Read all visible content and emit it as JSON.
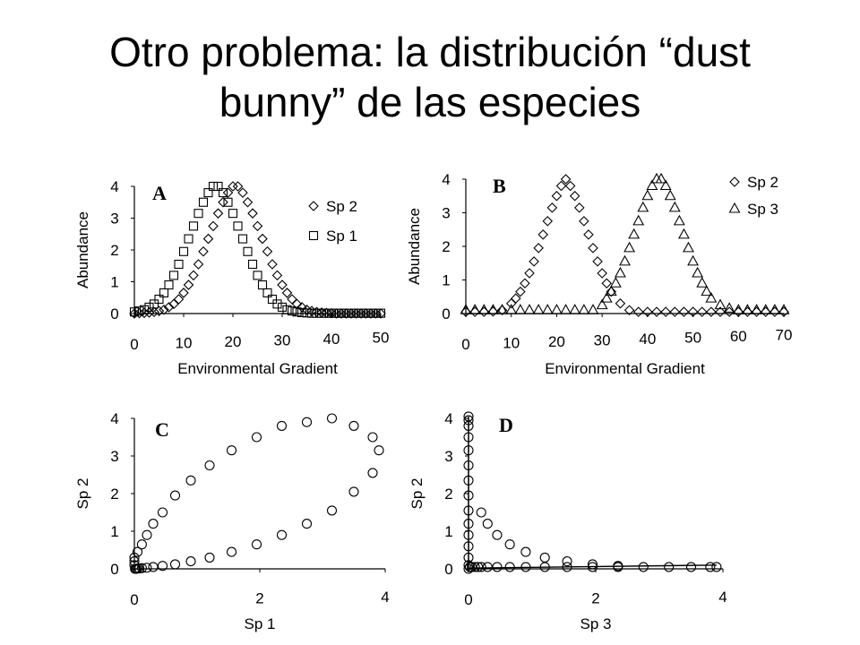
{
  "slide": {
    "title_line1": "Otro problema: la distribución “dust",
    "title_line2": "bunny” de las especies"
  },
  "chart_data": [
    {
      "panel": "A",
      "type": "scatter",
      "xlabel": "Environmental Gradient",
      "ylabel": "Abundance",
      "xlim": [
        0,
        50
      ],
      "ylim": [
        0,
        4
      ],
      "xticks": [
        "0",
        "10",
        "20",
        "30",
        "40",
        "50"
      ],
      "yticks": [
        "0",
        "1",
        "2",
        "3",
        "4"
      ],
      "legend_position": "top-right",
      "series": [
        {
          "name": "Sp 2",
          "marker": "diamond",
          "x": [
            0,
            1,
            2,
            3,
            4,
            5,
            6,
            7,
            8,
            9,
            10,
            11,
            12,
            13,
            14,
            15,
            16,
            17,
            18,
            19,
            20,
            21,
            22,
            23,
            24,
            25,
            26,
            27,
            28,
            29,
            30,
            31,
            32,
            33,
            34,
            35,
            36,
            37,
            38,
            39,
            40,
            41,
            42,
            43,
            44,
            45,
            46,
            47,
            48,
            49,
            50
          ],
          "y": [
            0.0,
            0.01,
            0.02,
            0.03,
            0.05,
            0.08,
            0.12,
            0.2,
            0.3,
            0.45,
            0.65,
            0.9,
            1.2,
            1.55,
            1.95,
            2.35,
            2.75,
            3.15,
            3.5,
            3.8,
            4.0,
            4.0,
            3.8,
            3.5,
            3.15,
            2.75,
            2.35,
            1.95,
            1.55,
            1.2,
            0.9,
            0.65,
            0.45,
            0.3,
            0.2,
            0.12,
            0.08,
            0.05,
            0.03,
            0.02,
            0.01,
            0.0,
            0.0,
            0.0,
            0.0,
            0.0,
            0.0,
            0.0,
            0.0,
            0.0,
            0.0
          ]
        },
        {
          "name": "Sp 1",
          "marker": "square",
          "x": [
            0,
            1,
            2,
            3,
            4,
            5,
            6,
            7,
            8,
            9,
            10,
            11,
            12,
            13,
            14,
            15,
            16,
            17,
            18,
            19,
            20,
            21,
            22,
            23,
            24,
            25,
            26,
            27,
            28,
            29,
            30,
            31,
            32,
            33,
            34,
            35,
            36,
            37,
            38,
            39,
            40,
            41,
            42,
            43,
            44,
            45,
            46,
            47,
            48,
            49,
            50
          ],
          "y": [
            0.05,
            0.08,
            0.12,
            0.2,
            0.3,
            0.45,
            0.65,
            0.9,
            1.2,
            1.55,
            1.95,
            2.35,
            2.75,
            3.15,
            3.5,
            3.8,
            4.0,
            4.0,
            3.8,
            3.5,
            3.15,
            2.75,
            2.35,
            1.95,
            1.55,
            1.2,
            0.9,
            0.65,
            0.45,
            0.3,
            0.2,
            0.12,
            0.08,
            0.05,
            0.03,
            0.02,
            0.01,
            0.01,
            0.01,
            0.01,
            0.01,
            0.01,
            0.01,
            0.01,
            0.01,
            0.01,
            0.01,
            0.01,
            0.01,
            0.01,
            0.01
          ]
        }
      ]
    },
    {
      "panel": "B",
      "type": "scatter",
      "xlabel": "Environmental Gradient",
      "ylabel": "Abundance",
      "xlim": [
        0,
        70
      ],
      "ylim": [
        0,
        4
      ],
      "xticks": [
        "0",
        "10",
        "20",
        "30",
        "40",
        "50",
        "60",
        "70"
      ],
      "yticks": [
        "0",
        "1",
        "2",
        "3",
        "4"
      ],
      "legend_position": "top-right",
      "series": [
        {
          "name": "Sp 2",
          "marker": "diamond",
          "x": [
            0,
            2,
            4,
            6,
            8,
            10,
            11,
            12,
            13,
            14,
            15,
            16,
            17,
            18,
            19,
            20,
            21,
            22,
            23,
            24,
            25,
            26,
            27,
            28,
            29,
            30,
            31,
            32,
            34,
            36,
            38,
            40,
            42,
            44,
            46,
            48,
            50,
            52,
            54,
            56,
            58,
            60,
            62,
            64,
            66,
            68,
            70
          ],
          "y": [
            0.05,
            0.05,
            0.05,
            0.06,
            0.1,
            0.3,
            0.45,
            0.65,
            0.9,
            1.2,
            1.55,
            1.95,
            2.35,
            2.75,
            3.15,
            3.5,
            3.8,
            4.0,
            3.8,
            3.5,
            3.15,
            2.75,
            2.35,
            1.95,
            1.55,
            1.2,
            0.9,
            0.65,
            0.3,
            0.1,
            0.05,
            0.05,
            0.05,
            0.05,
            0.05,
            0.05,
            0.05,
            0.05,
            0.05,
            0.05,
            0.05,
            0.05,
            0.05,
            0.05,
            0.05,
            0.05,
            0.05
          ]
        },
        {
          "name": "Sp 3",
          "marker": "triangle",
          "x": [
            0,
            2,
            4,
            6,
            8,
            10,
            12,
            14,
            16,
            18,
            20,
            22,
            24,
            26,
            28,
            30,
            31,
            32,
            33,
            34,
            35,
            36,
            37,
            38,
            39,
            40,
            41,
            42,
            43,
            44,
            45,
            46,
            47,
            48,
            49,
            50,
            51,
            52,
            53,
            54,
            56,
            58,
            60,
            62,
            64,
            66,
            68,
            70
          ],
          "y": [
            0.1,
            0.1,
            0.1,
            0.1,
            0.1,
            0.1,
            0.1,
            0.1,
            0.1,
            0.1,
            0.1,
            0.1,
            0.1,
            0.1,
            0.1,
            0.25,
            0.45,
            0.65,
            0.9,
            1.2,
            1.55,
            1.95,
            2.35,
            2.75,
            3.15,
            3.5,
            3.8,
            4.0,
            4.0,
            3.8,
            3.5,
            3.15,
            2.75,
            2.35,
            1.95,
            1.55,
            1.2,
            0.9,
            0.65,
            0.45,
            0.25,
            0.15,
            0.1,
            0.1,
            0.1,
            0.1,
            0.1,
            0.1
          ]
        }
      ]
    },
    {
      "panel": "C",
      "type": "scatter",
      "xlabel": "Sp 1",
      "ylabel": "Sp 2",
      "xlim": [
        0,
        4
      ],
      "ylim": [
        0,
        4
      ],
      "xticks": [
        "0",
        "2",
        "4"
      ],
      "yticks": [
        "0",
        "1",
        "2",
        "3",
        "4"
      ],
      "series": [
        {
          "marker": "circle",
          "x": [
            0.0,
            0.0,
            0.0,
            0.05,
            0.12,
            0.2,
            0.3,
            0.45,
            0.65,
            0.9,
            1.2,
            1.55,
            1.95,
            2.35,
            2.75,
            3.15,
            3.5,
            3.8,
            3.9,
            3.8,
            3.5,
            3.15,
            2.75,
            2.35,
            1.95,
            1.55,
            1.2,
            0.9,
            0.65,
            0.45,
            0.3,
            0.2,
            0.12,
            0.08,
            0.05,
            0.03,
            0.02,
            0.01
          ],
          "y": [
            0.1,
            0.2,
            0.3,
            0.45,
            0.65,
            0.9,
            1.2,
            1.5,
            1.95,
            2.35,
            2.75,
            3.15,
            3.5,
            3.8,
            3.9,
            4.0,
            3.8,
            3.5,
            3.15,
            2.55,
            2.05,
            1.55,
            1.2,
            0.9,
            0.65,
            0.45,
            0.3,
            0.2,
            0.12,
            0.08,
            0.05,
            0.03,
            0.02,
            0.01,
            0.01,
            0.0,
            0.0,
            0.0
          ]
        }
      ]
    },
    {
      "panel": "D",
      "type": "scatter",
      "xlabel": "Sp 3",
      "ylabel": "Sp 2",
      "xlim": [
        0,
        4
      ],
      "ylim": [
        0,
        4
      ],
      "xticks": [
        "0",
        "2",
        "4"
      ],
      "yticks": [
        "0",
        "1",
        "2",
        "3",
        "4"
      ],
      "series": [
        {
          "marker": "circle",
          "x": [
            0,
            0,
            0,
            0,
            0,
            0,
            0,
            0,
            0,
            0,
            0,
            0,
            0,
            0,
            0,
            0.02,
            0.05,
            0.1,
            0.15,
            0.2,
            0.3,
            0.45,
            0.65,
            0.9,
            1.2,
            1.55,
            1.95,
            2.35,
            2.75,
            3.15,
            3.5,
            3.8,
            3.9,
            0.2,
            0.3,
            0.45,
            0.65,
            0.9,
            1.2,
            1.55,
            1.95,
            2.35
          ],
          "y": [
            0,
            0.1,
            0.3,
            0.6,
            0.9,
            1.2,
            1.55,
            1.95,
            2.35,
            2.75,
            3.15,
            3.5,
            3.8,
            3.95,
            4.05,
            0.05,
            0.05,
            0.05,
            0.05,
            0.05,
            0.05,
            0.05,
            0.05,
            0.05,
            0.05,
            0.05,
            0.05,
            0.05,
            0.05,
            0.05,
            0.05,
            0.05,
            0.05,
            1.5,
            1.2,
            0.9,
            0.65,
            0.45,
            0.3,
            0.2,
            0.12,
            0.08
          ]
        }
      ]
    }
  ]
}
